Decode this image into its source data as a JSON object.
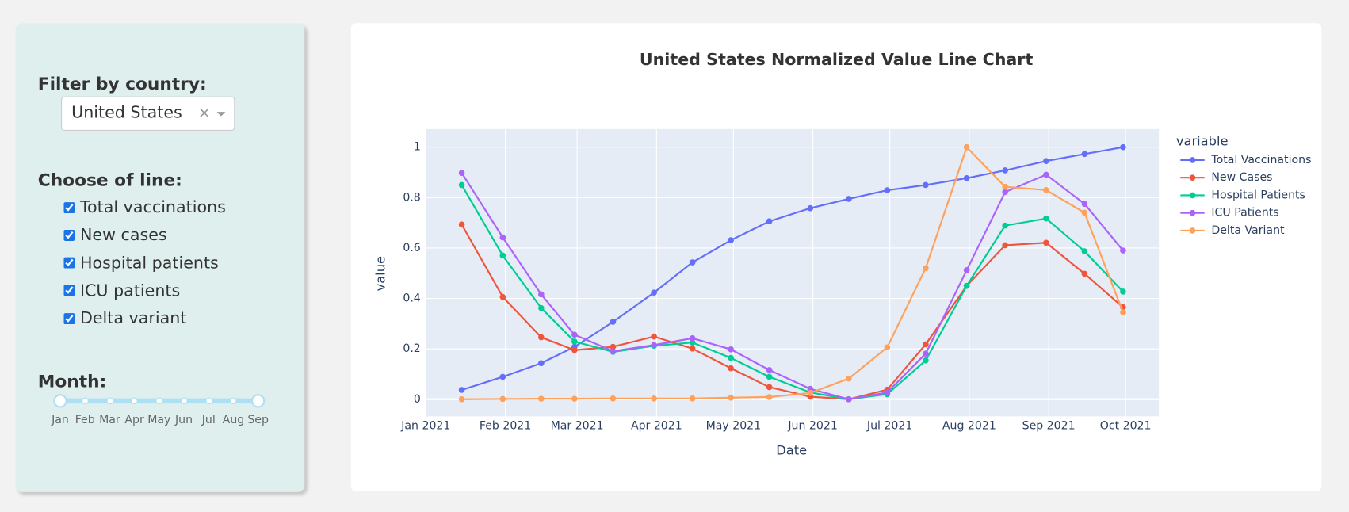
{
  "sidebar": {
    "country_label": "Filter by country:",
    "country_value": "United States",
    "clear_symbol": "×",
    "line_label": "Choose of line:",
    "line_options": [
      "Total vaccinations",
      "New cases",
      "Hospital patients",
      "ICU patients",
      "Delta variant"
    ],
    "month_label": "Month:",
    "month_marks": [
      "Jan",
      "Feb",
      "Mar",
      "Apr",
      "May",
      "Jun",
      "Jul",
      "Aug",
      "Sep"
    ]
  },
  "chart_data": {
    "type": "line",
    "title": "United States Normalized Value Line Chart",
    "x_label": "Date",
    "y_label": "value",
    "legend_title": "variable",
    "legend_position": "right",
    "grid": true,
    "x": [
      "2021-01-15",
      "2021-01-31",
      "2021-02-15",
      "2021-02-28",
      "2021-03-15",
      "2021-03-31",
      "2021-04-15",
      "2021-04-30",
      "2021-05-15",
      "2021-05-31",
      "2021-06-15",
      "2021-06-30",
      "2021-07-15",
      "2021-07-31",
      "2021-08-15",
      "2021-08-31",
      "2021-09-15",
      "2021-09-30"
    ],
    "xlim": [
      "2021-01-01",
      "2021-10-14"
    ],
    "xticks": [
      {
        "value": "2021-01-01",
        "label": "Jan 2021"
      },
      {
        "value": "2021-02-01",
        "label": "Feb 2021"
      },
      {
        "value": "2021-03-01",
        "label": "Mar 2021"
      },
      {
        "value": "2021-04-01",
        "label": "Apr 2021"
      },
      {
        "value": "2021-05-01",
        "label": "May 2021"
      },
      {
        "value": "2021-06-01",
        "label": "Jun 2021"
      },
      {
        "value": "2021-07-01",
        "label": "Jul 2021"
      },
      {
        "value": "2021-08-01",
        "label": "Aug 2021"
      },
      {
        "value": "2021-09-01",
        "label": "Sep 2021"
      },
      {
        "value": "2021-10-01",
        "label": "Oct 2021"
      }
    ],
    "ylim": [
      -0.068,
      1.072
    ],
    "yticks": [
      0,
      0.2,
      0.4,
      0.6,
      0.8,
      1
    ],
    "series": [
      {
        "name": "Total Vaccinations",
        "color": "#636efa",
        "values": [
          0.037,
          0.089,
          0.143,
          0.208,
          0.307,
          0.423,
          0.543,
          0.631,
          0.706,
          0.758,
          0.795,
          0.829,
          0.85,
          0.877,
          0.908,
          0.945,
          0.973,
          1
        ]
      },
      {
        "name": "New Cases",
        "color": "#EF553B",
        "values": [
          0.693,
          0.406,
          0.246,
          0.195,
          0.208,
          0.249,
          0.201,
          0.123,
          0.048,
          0.01,
          0,
          0.038,
          0.218,
          0.45,
          0.611,
          0.621,
          0.498,
          0.365
        ]
      },
      {
        "name": "Hospital Patients",
        "color": "#00cc96",
        "values": [
          0.85,
          0.57,
          0.362,
          0.229,
          0.188,
          0.212,
          0.225,
          0.164,
          0.089,
          0.027,
          0,
          0.02,
          0.154,
          0.45,
          0.689,
          0.717,
          0.587,
          0.427
        ]
      },
      {
        "name": "ICU Patients",
        "color": "#ab63fa",
        "values": [
          0.898,
          0.642,
          0.416,
          0.256,
          0.191,
          0.215,
          0.242,
          0.198,
          0.116,
          0.041,
          0,
          0.027,
          0.181,
          0.512,
          0.822,
          0.891,
          0.775,
          0.59
        ]
      },
      {
        "name": "Delta Variant",
        "color": "#FFA15A",
        "values": [
          0,
          0.001,
          0.002,
          0.002,
          0.003,
          0.003,
          0.003,
          0.006,
          0.009,
          0.025,
          0.082,
          0.206,
          0.52,
          1,
          0.843,
          0.83,
          0.74,
          0.345
        ]
      }
    ]
  }
}
